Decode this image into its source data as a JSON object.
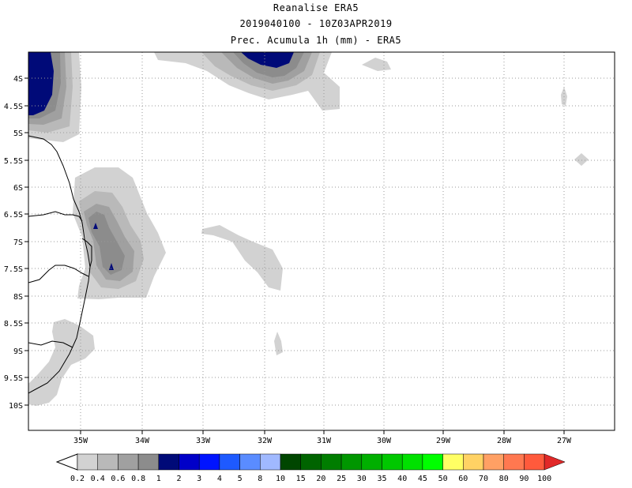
{
  "title": {
    "line1": "Reanalise ERA5",
    "line2": "2019040100 - 10Z03APR2019",
    "line3": "Prec. Acumula 1h (mm) - ERA5"
  },
  "map": {
    "lon_labels": [
      "35W",
      "34W",
      "33W",
      "32W",
      "31W",
      "30W",
      "29W",
      "28W",
      "27W"
    ],
    "lat_labels": [
      "4S",
      "4.5S",
      "5S",
      "5.5S",
      "6S",
      "6.5S",
      "7S",
      "7.5S",
      "8S",
      "8.5S",
      "9S",
      "9.5S",
      "10S"
    ]
  },
  "colorbar": {
    "labels": [
      "0.2",
      "0.4",
      "0.6",
      "0.8",
      "1",
      "2",
      "3",
      "4",
      "5",
      "8",
      "10",
      "15",
      "20",
      "25",
      "30",
      "35",
      "40",
      "45",
      "50",
      "60",
      "70",
      "80",
      "90",
      "100"
    ],
    "colors": [
      "#d2d2d2",
      "#b9b9b9",
      "#a0a0a0",
      "#8c8c8c",
      "#000a78",
      "#0000c8",
      "#0014ff",
      "#1e5aff",
      "#5a8cff",
      "#a0b9ff",
      "#004600",
      "#006400",
      "#007d00",
      "#009600",
      "#00af00",
      "#00c800",
      "#00e100",
      "#00ff00",
      "#ffff64",
      "#ffd264",
      "#ffa064",
      "#ff7850",
      "#ff5a3c",
      "#ff1e1e",
      "#e12828"
    ],
    "under_color": "#ffffff",
    "over_color": "#e12828"
  }
}
